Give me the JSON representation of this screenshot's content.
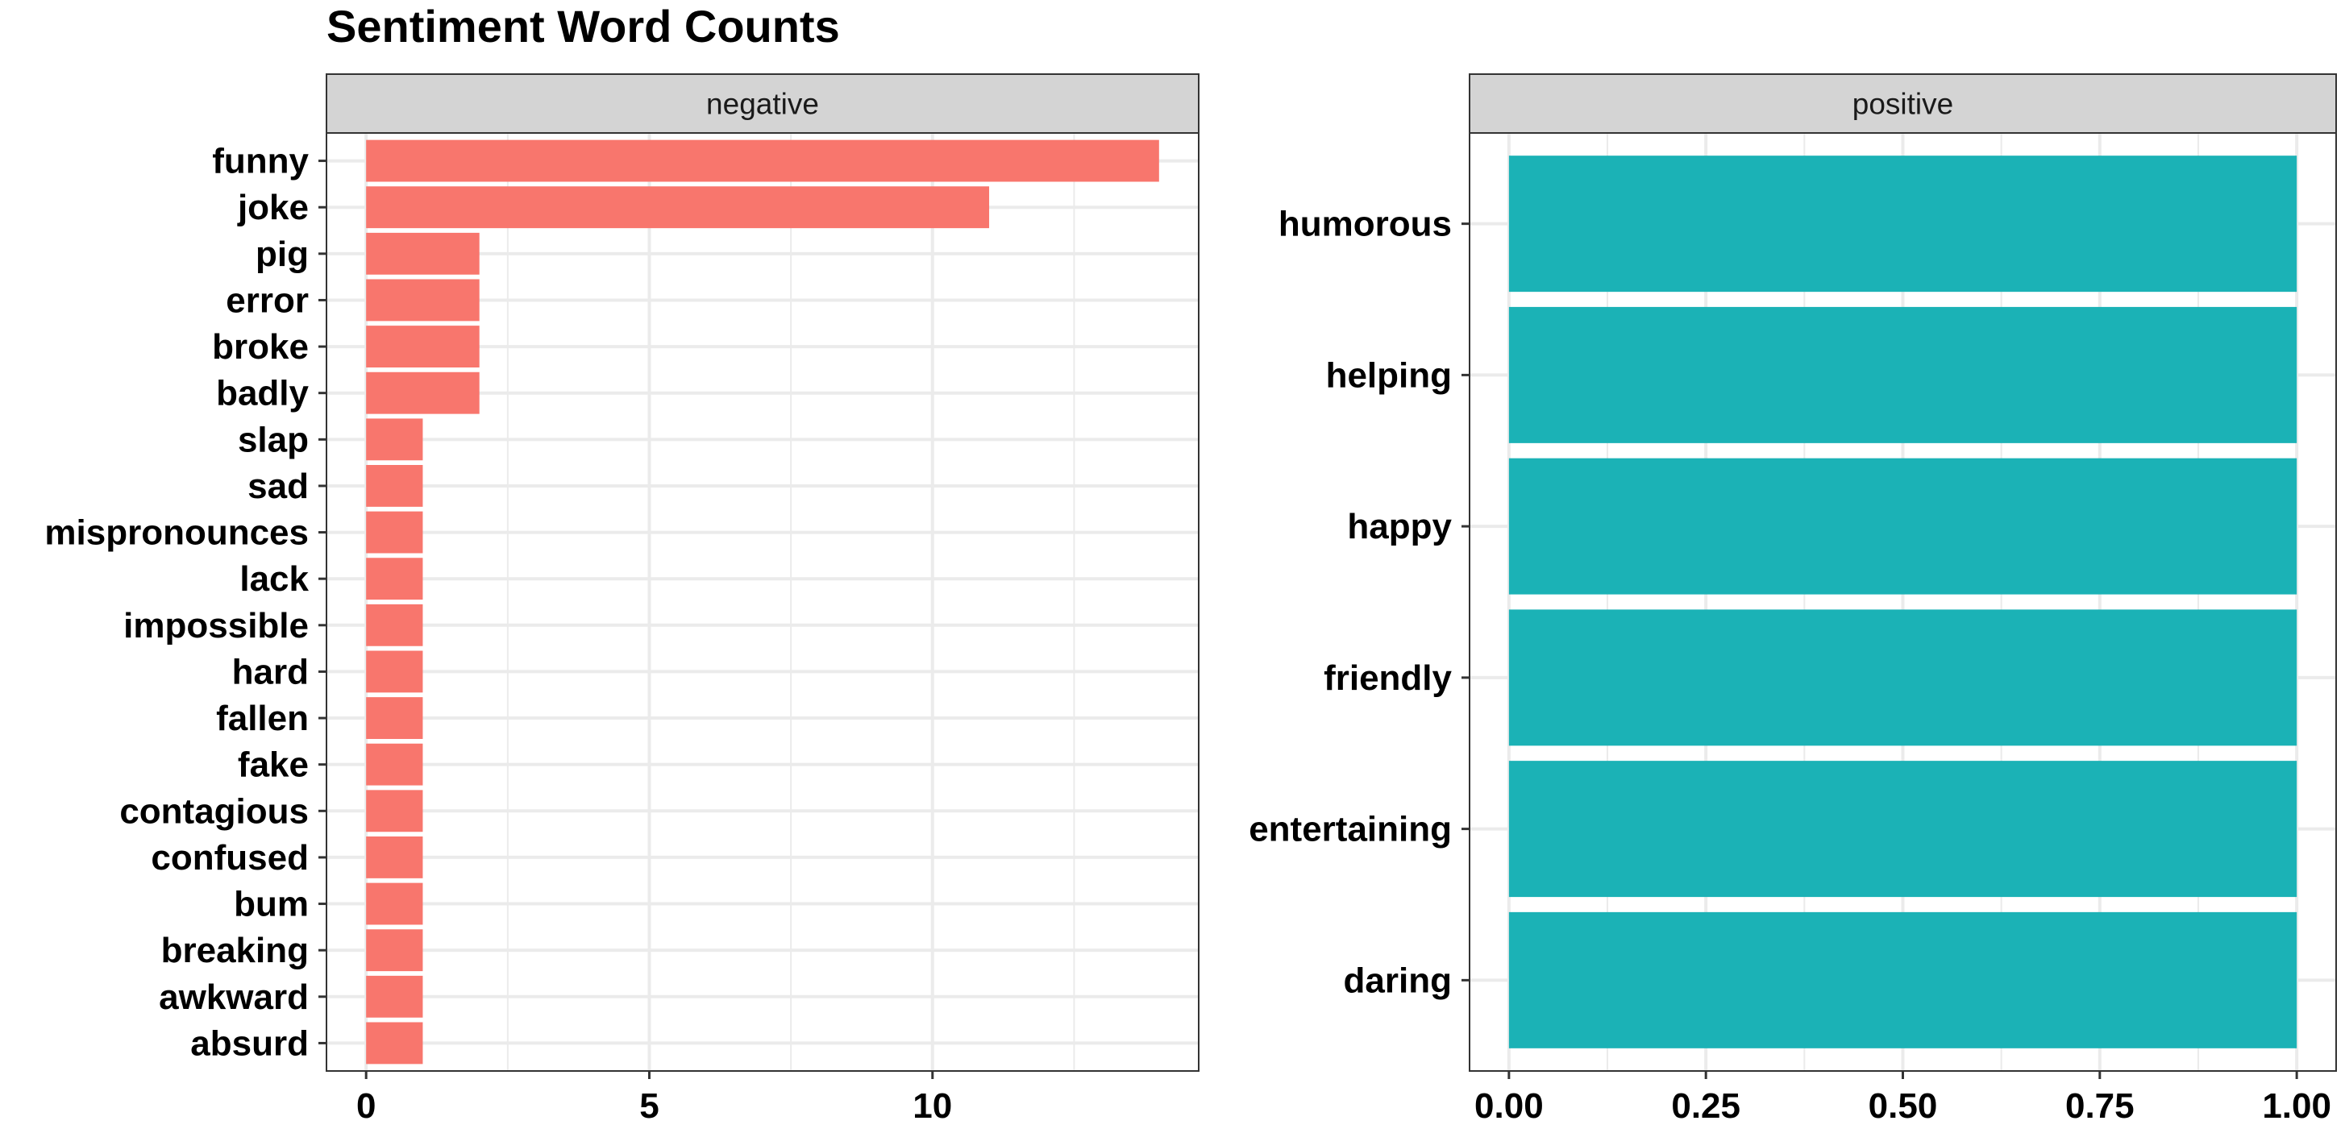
{
  "colors": {
    "negative_bar": "#F8766D",
    "positive_bar": "#1BB2B6",
    "strip_fill": "#D4D4D4",
    "grid": "#EBEBEB",
    "panel_border": "#333333"
  },
  "chart_data": {
    "type": "bar",
    "title": "Sentiment Word Counts",
    "orientation": "horizontal",
    "grid": true,
    "panels": [
      {
        "name": "negative",
        "categories": [
          "funny",
          "joke",
          "pig",
          "error",
          "broke",
          "badly",
          "slap",
          "sad",
          "mispronounces",
          "lack",
          "impossible",
          "hard",
          "fallen",
          "fake",
          "contagious",
          "confused",
          "bum",
          "breaking",
          "awkward",
          "absurd"
        ],
        "values": [
          14,
          11,
          2,
          2,
          2,
          2,
          1,
          1,
          1,
          1,
          1,
          1,
          1,
          1,
          1,
          1,
          1,
          1,
          1,
          1
        ],
        "xlim": [
          -0.7,
          14.7
        ],
        "x_ticks": [
          0,
          5,
          10
        ],
        "x_tick_labels": [
          "0",
          "5",
          "10"
        ],
        "color": "#F8766D"
      },
      {
        "name": "positive",
        "categories": [
          "humorous",
          "helping",
          "happy",
          "friendly",
          "entertaining",
          "daring"
        ],
        "values": [
          1,
          1,
          1,
          1,
          1,
          1
        ],
        "xlim": [
          -0.05,
          1.05
        ],
        "x_ticks": [
          0,
          0.25,
          0.5,
          0.75,
          1.0
        ],
        "x_tick_labels": [
          "0.00",
          "0.25",
          "0.50",
          "0.75",
          "1.00"
        ],
        "color": "#1BB2B6"
      }
    ]
  }
}
